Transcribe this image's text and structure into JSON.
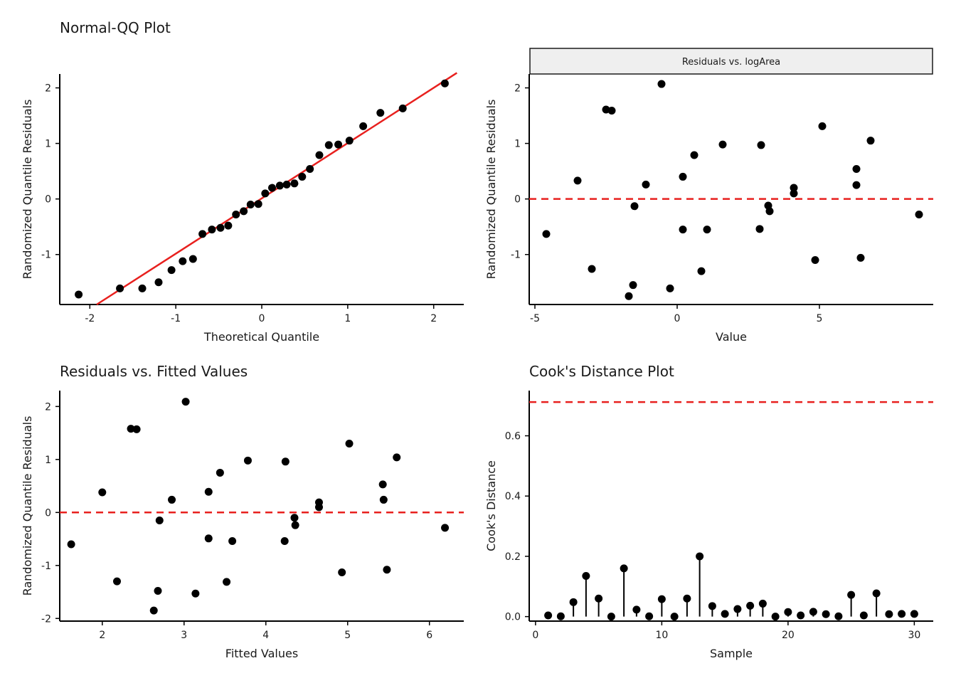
{
  "chart_data": [
    {
      "type": "scatter",
      "title": "Normal-QQ Plot",
      "xlabel": "Theoretical Quantile",
      "ylabel": "Randomized Quantile Residuals",
      "xlim": [
        -2.35,
        2.35
      ],
      "ylim": [
        -1.9,
        2.25
      ],
      "xticks": [
        -2,
        -1,
        0,
        1,
        2
      ],
      "yticks": [
        -1,
        0,
        1,
        2
      ],
      "xtick_labels": [
        "-2",
        "-1",
        "0",
        "1",
        "2"
      ],
      "ytick_labels": [
        "-1",
        "0",
        "1",
        "2"
      ],
      "reference_line": {
        "color": "#e8201e",
        "dashed": false,
        "points": [
          [
            -1.92,
            -1.9
          ],
          [
            2.27,
            2.27
          ]
        ]
      },
      "points": [
        [
          -2.13,
          -1.72
        ],
        [
          -1.65,
          -1.61
        ],
        [
          -1.39,
          -1.61
        ],
        [
          -1.2,
          -1.5
        ],
        [
          -1.05,
          -1.28
        ],
        [
          -0.92,
          -1.12
        ],
        [
          -0.8,
          -1.08
        ],
        [
          -0.69,
          -0.63
        ],
        [
          -0.58,
          -0.55
        ],
        [
          -0.48,
          -0.52
        ],
        [
          -0.39,
          -0.48
        ],
        [
          -0.3,
          -0.28
        ],
        [
          -0.21,
          -0.22
        ],
        [
          -0.13,
          -0.1
        ],
        [
          -0.04,
          -0.09
        ],
        [
          0.04,
          0.1
        ],
        [
          0.12,
          0.2
        ],
        [
          0.21,
          0.24
        ],
        [
          0.29,
          0.26
        ],
        [
          0.38,
          0.28
        ],
        [
          0.47,
          0.4
        ],
        [
          0.56,
          0.54
        ],
        [
          0.67,
          0.79
        ],
        [
          0.78,
          0.97
        ],
        [
          0.89,
          0.98
        ],
        [
          1.02,
          1.05
        ],
        [
          1.18,
          1.31
        ],
        [
          1.38,
          1.55
        ],
        [
          1.64,
          1.63
        ],
        [
          2.13,
          2.08
        ]
      ]
    },
    {
      "type": "scatter",
      "strip_label": "Residuals vs. logArea",
      "xlabel": "Value",
      "ylabel": "Randomized Quantile Residuals",
      "xlim": [
        -5.2,
        9.0
      ],
      "ylim": [
        -1.9,
        2.25
      ],
      "xticks": [
        -5,
        0,
        5
      ],
      "yticks": [
        -1,
        0,
        1,
        2
      ],
      "xtick_labels": [
        "-5",
        "0",
        "5"
      ],
      "ytick_labels": [
        "-1",
        "0",
        "1",
        "2"
      ],
      "reference_line": {
        "color": "#e8201e",
        "dashed": true,
        "y": 0
      },
      "points": [
        [
          -4.6,
          -0.63
        ],
        [
          -3.5,
          0.33
        ],
        [
          -3.0,
          -1.26
        ],
        [
          -2.5,
          1.61
        ],
        [
          -2.3,
          1.59
        ],
        [
          -1.7,
          -1.75
        ],
        [
          -1.55,
          -1.55
        ],
        [
          -1.5,
          -0.13
        ],
        [
          -1.1,
          0.26
        ],
        [
          -0.55,
          2.07
        ],
        [
          -0.25,
          -1.61
        ],
        [
          0.2,
          0.4
        ],
        [
          0.2,
          -0.55
        ],
        [
          0.6,
          0.79
        ],
        [
          0.85,
          -1.3
        ],
        [
          1.05,
          -0.55
        ],
        [
          1.6,
          0.98
        ],
        [
          2.9,
          -0.54
        ],
        [
          2.95,
          0.97
        ],
        [
          3.2,
          -0.12
        ],
        [
          3.25,
          -0.22
        ],
        [
          4.1,
          0.1
        ],
        [
          4.1,
          0.2
        ],
        [
          4.85,
          -1.1
        ],
        [
          5.1,
          1.31
        ],
        [
          6.3,
          0.54
        ],
        [
          6.3,
          0.25
        ],
        [
          6.45,
          -1.06
        ],
        [
          6.8,
          1.05
        ],
        [
          8.5,
          -0.28
        ]
      ]
    },
    {
      "type": "scatter",
      "title": "Residuals vs. Fitted Values",
      "xlabel": "Fitted Values",
      "ylabel": "Randomized Quantile Residuals",
      "xlim": [
        1.48,
        6.42
      ],
      "ylim": [
        -2.05,
        2.3
      ],
      "xticks": [
        2,
        3,
        4,
        5,
        6
      ],
      "yticks": [
        -2,
        -1,
        0,
        1,
        2
      ],
      "xtick_labels": [
        "2",
        "3",
        "4",
        "5",
        "6"
      ],
      "ytick_labels": [
        "-2",
        "-1",
        "0",
        "1",
        "2"
      ],
      "reference_line": {
        "color": "#e8201e",
        "dashed": true,
        "y": 0
      },
      "points": [
        [
          1.62,
          -0.6
        ],
        [
          2.0,
          0.38
        ],
        [
          2.18,
          -1.3
        ],
        [
          2.35,
          1.58
        ],
        [
          2.42,
          1.57
        ],
        [
          2.63,
          -1.85
        ],
        [
          2.68,
          -1.48
        ],
        [
          2.7,
          -0.15
        ],
        [
          2.85,
          0.24
        ],
        [
          3.02,
          2.09
        ],
        [
          3.14,
          -1.53
        ],
        [
          3.3,
          -0.49
        ],
        [
          3.3,
          0.39
        ],
        [
          3.44,
          0.75
        ],
        [
          3.52,
          -1.31
        ],
        [
          3.59,
          -0.54
        ],
        [
          3.78,
          0.98
        ],
        [
          4.23,
          -0.54
        ],
        [
          4.24,
          0.96
        ],
        [
          4.35,
          -0.1
        ],
        [
          4.36,
          -0.24
        ],
        [
          4.65,
          0.1
        ],
        [
          4.65,
          0.19
        ],
        [
          4.93,
          -1.13
        ],
        [
          5.02,
          1.3
        ],
        [
          5.43,
          0.53
        ],
        [
          5.44,
          0.24
        ],
        [
          5.48,
          -1.08
        ],
        [
          5.6,
          1.04
        ],
        [
          6.19,
          -0.29
        ]
      ]
    },
    {
      "type": "stem",
      "title": "Cook's Distance Plot",
      "xlabel": "Sample",
      "ylabel": "Cook's Distance",
      "xlim": [
        -0.5,
        31.5
      ],
      "ylim": [
        -0.015,
        0.75
      ],
      "xticks": [
        0,
        10,
        20,
        30
      ],
      "yticks": [
        0,
        0.2,
        0.4,
        0.6
      ],
      "xtick_labels": [
        "0",
        "10",
        "20",
        "30"
      ],
      "ytick_labels": [
        "0.0",
        "0.2",
        "0.4",
        "0.6"
      ],
      "reference_line": {
        "color": "#e8201e",
        "dashed": true,
        "y": 0.712
      },
      "x": [
        1,
        2,
        3,
        4,
        5,
        6,
        7,
        8,
        9,
        10,
        11,
        12,
        13,
        14,
        15,
        16,
        17,
        18,
        19,
        20,
        21,
        22,
        23,
        24,
        25,
        26,
        27,
        28,
        29,
        30
      ],
      "values": [
        0.004,
        0.001,
        0.048,
        0.135,
        0.06,
        0.0,
        0.16,
        0.023,
        0.001,
        0.058,
        0.0,
        0.06,
        0.2,
        0.035,
        0.009,
        0.025,
        0.036,
        0.043,
        0.0,
        0.015,
        0.004,
        0.016,
        0.008,
        0.001,
        0.072,
        0.004,
        0.077,
        0.008,
        0.009,
        0.009
      ]
    }
  ]
}
